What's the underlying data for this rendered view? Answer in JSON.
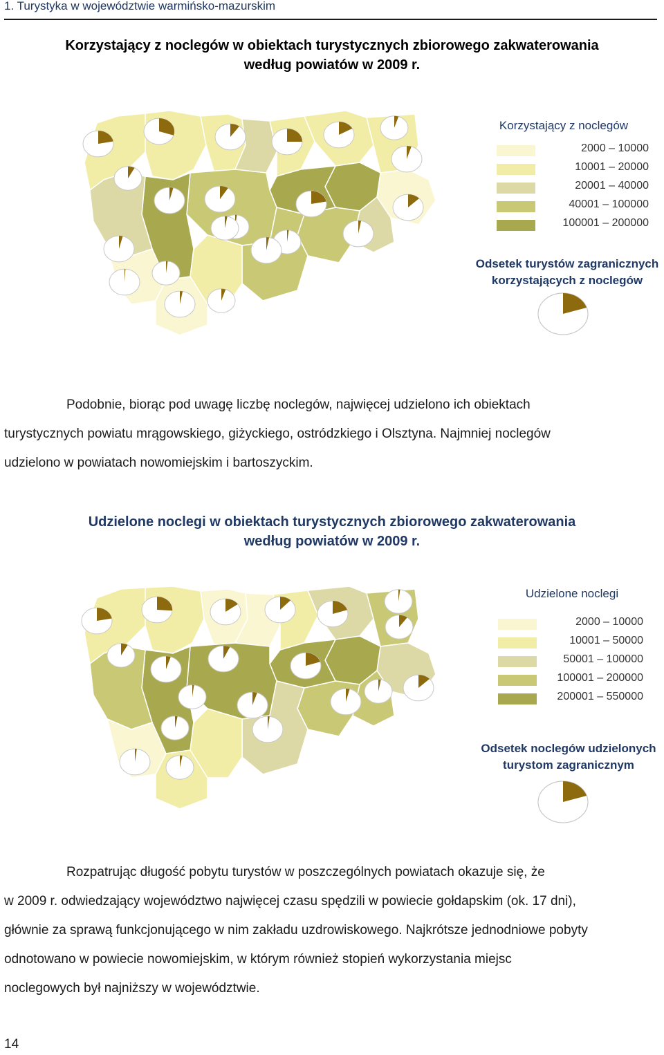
{
  "header": {
    "running_title": "1. Turystyka w województwie warmińsko-mazurskim",
    "page_number": "14"
  },
  "figure1": {
    "title_line1": "Korzystający z noclegów w obiektach turystycznych zbiorowego zakwaterowania",
    "title_line2": "według powiatów w 2009 r.",
    "legend_title": "Korzystający z noclegów",
    "legend": [
      {
        "range": "2000 – 10000",
        "color": "#fbf6d2"
      },
      {
        "range": "10001 – 20000",
        "color": "#f2eda6"
      },
      {
        "range": "20001 – 40000",
        "color": "#dcd9a6"
      },
      {
        "range": "40001 – 100000",
        "color": "#c9c975"
      },
      {
        "range": "100001 – 200000",
        "color": "#a8a84e"
      }
    ],
    "pie_legend_title_line1": "Odsetek turystów zagranicznych",
    "pie_legend_title_line2": "korzystających z noclegów"
  },
  "paragraph1": {
    "line1": "Podobnie, biorąc pod uwagę liczbę noclegów, najwięcej udzielono ich obiektach",
    "line2": "turystycznych powiatu mrągowskiego, giżyckiego, ostródzkiego i Olsztyna. Najmniej noclegów",
    "line3": "udzielono w powiatach nowomiejskim i bartoszyckim."
  },
  "figure2": {
    "title_line1": "Udzielone noclegi w obiektach turystycznych zbiorowego zakwaterowania",
    "title_line2": "według powiatów w 2009 r.",
    "legend_title": "Udzielone noclegi",
    "legend": [
      {
        "range": "2000 – 10000",
        "color": "#fbf6d2"
      },
      {
        "range": "10001 – 50000",
        "color": "#f2eda6"
      },
      {
        "range": "50001 – 100000",
        "color": "#dcd9a6"
      },
      {
        "range": "100001 – 200000",
        "color": "#c9c975"
      },
      {
        "range": "200001 – 550000",
        "color": "#a8a84e"
      }
    ],
    "pie_legend_title_line1": "Odsetek noclegów udzielonych",
    "pie_legend_title_line2": "turystom zagranicznym"
  },
  "paragraph2": {
    "line1": "Rozpatrując długość pobytu turystów w poszczególnych powiatach okazuje się, że",
    "line2": "w 2009 r. odwiedzający województwo najwięcej czasu spędzili w powiecie gołdapskim (ok. 17 dni),",
    "line3": "głównie za sprawą funkcjonującego w nim zakładu uzdrowiskowego. Najkrótsze jednodniowe pobyty",
    "line4": "odnotowano w powiecie nowomiejskim, w którym również stopień wykorzystania miejsc",
    "line5": "noclegowych był najniższy w województwie."
  },
  "colors": {
    "pie_slice": "#8c6a0d",
    "pie_body": "#ffffff",
    "border": "#c8c8c8"
  }
}
